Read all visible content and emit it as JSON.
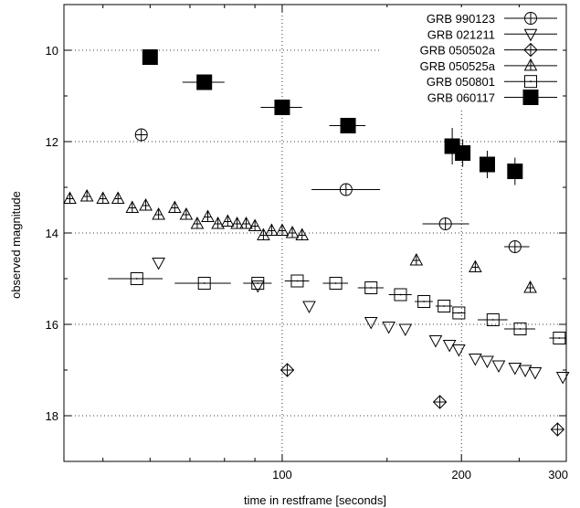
{
  "chart_data": {
    "type": "scatter",
    "title": "",
    "xlabel": "time in restframe [seconds]",
    "ylabel": "observed magnitude",
    "xscale": "log",
    "xlim": [
      43,
      300
    ],
    "ylim": [
      19,
      9
    ],
    "y_inverted": true,
    "grid": "dotted, at x ticks and y ticks",
    "legend_position": "top-right",
    "x_ticks": [
      100,
      200,
      300
    ],
    "x_tick_labels": [
      "100",
      "200",
      "300"
    ],
    "y_ticks": [
      10,
      12,
      14,
      16,
      18
    ],
    "y_tick_labels": [
      "10",
      "12",
      "14",
      "16",
      "18"
    ],
    "series": [
      {
        "name": "GRB 990123",
        "marker": "circle",
        "points": [
          {
            "x": 58,
            "y": 11.85
          },
          {
            "x": 128,
            "y": 13.05,
            "xerr": [
              112,
              146
            ]
          },
          {
            "x": 188,
            "y": 13.8,
            "xerr": [
              172,
              206
            ]
          },
          {
            "x": 246,
            "y": 14.3,
            "xerr": [
              236,
              260
            ]
          }
        ]
      },
      {
        "name": "GRB 021211",
        "marker": "triangle-down",
        "points": [
          {
            "x": 62,
            "y": 14.65
          },
          {
            "x": 91,
            "y": 15.15
          },
          {
            "x": 111,
            "y": 15.6
          },
          {
            "x": 141,
            "y": 15.95
          },
          {
            "x": 151,
            "y": 16.05
          },
          {
            "x": 161,
            "y": 16.1
          },
          {
            "x": 181,
            "y": 16.35
          },
          {
            "x": 191,
            "y": 16.45
          },
          {
            "x": 198,
            "y": 16.55
          },
          {
            "x": 211,
            "y": 16.75
          },
          {
            "x": 221,
            "y": 16.8
          },
          {
            "x": 231,
            "y": 16.9
          },
          {
            "x": 246,
            "y": 16.95
          },
          {
            "x": 256,
            "y": 17.0
          },
          {
            "x": 266,
            "y": 17.05
          },
          {
            "x": 296,
            "y": 17.15
          }
        ]
      },
      {
        "name": "GRB 050502a",
        "marker": "diamond",
        "points": [
          {
            "x": 102,
            "y": 17.0
          },
          {
            "x": 184,
            "y": 17.7
          },
          {
            "x": 290,
            "y": 18.3
          }
        ]
      },
      {
        "name": "GRB 050525a",
        "marker": "triangle-up",
        "points": [
          {
            "x": 44,
            "y": 13.25
          },
          {
            "x": 47,
            "y": 13.2
          },
          {
            "x": 50,
            "y": 13.25
          },
          {
            "x": 53,
            "y": 13.25
          },
          {
            "x": 56,
            "y": 13.45
          },
          {
            "x": 59,
            "y": 13.4
          },
          {
            "x": 62,
            "y": 13.6
          },
          {
            "x": 66,
            "y": 13.45
          },
          {
            "x": 69,
            "y": 13.6
          },
          {
            "x": 72,
            "y": 13.8
          },
          {
            "x": 75,
            "y": 13.65
          },
          {
            "x": 78,
            "y": 13.8
          },
          {
            "x": 81,
            "y": 13.75
          },
          {
            "x": 84,
            "y": 13.8
          },
          {
            "x": 87,
            "y": 13.8
          },
          {
            "x": 90,
            "y": 13.85
          },
          {
            "x": 93,
            "y": 14.05
          },
          {
            "x": 96,
            "y": 13.95
          },
          {
            "x": 100,
            "y": 13.95
          },
          {
            "x": 104,
            "y": 14.0
          },
          {
            "x": 108,
            "y": 14.05
          },
          {
            "x": 168,
            "y": 14.6
          },
          {
            "x": 211,
            "y": 14.75
          },
          {
            "x": 261,
            "y": 15.2
          }
        ]
      },
      {
        "name": "GRB 050801",
        "marker": "square-open",
        "points": [
          {
            "x": 57,
            "y": 15.0,
            "xerr": [
              51,
              63
            ]
          },
          {
            "x": 74,
            "y": 15.1,
            "xerr": [
              66,
              82
            ]
          },
          {
            "x": 91,
            "y": 15.1,
            "xerr": [
              86,
              96
            ]
          },
          {
            "x": 106,
            "y": 15.05,
            "xerr": [
              101,
              111
            ]
          },
          {
            "x": 123,
            "y": 15.1,
            "xerr": [
              117,
              129
            ]
          },
          {
            "x": 141,
            "y": 15.2,
            "xerr": [
              134,
              148
            ]
          },
          {
            "x": 158,
            "y": 15.35,
            "xerr": [
              151,
              165
            ]
          },
          {
            "x": 173,
            "y": 15.5,
            "xerr": [
              167,
              179
            ]
          },
          {
            "x": 187,
            "y": 15.6,
            "xerr": [
              181,
              193
            ]
          },
          {
            "x": 198,
            "y": 15.75,
            "xerr": [
              193,
              203
            ]
          },
          {
            "x": 226,
            "y": 15.9,
            "xerr": [
              213,
              239
            ]
          },
          {
            "x": 251,
            "y": 16.1,
            "xerr": [
              236,
              266
            ]
          },
          {
            "x": 292,
            "y": 16.3,
            "xerr": [
              281,
              300
            ]
          }
        ]
      },
      {
        "name": "GRB 060117",
        "marker": "square-filled",
        "points": [
          {
            "x": 60,
            "y": 10.15
          },
          {
            "x": 74,
            "y": 10.7,
            "xerr": [
              68,
              80
            ]
          },
          {
            "x": 100,
            "y": 11.25,
            "xerr": [
              92,
              108
            ]
          },
          {
            "x": 129,
            "y": 11.65,
            "xerr": [
              120,
              138
            ]
          },
          {
            "x": 193,
            "y": 12.1,
            "yerr": [
              11.7,
              12.5
            ]
          },
          {
            "x": 201,
            "y": 12.25,
            "yerr": [
              11.95,
              12.55
            ]
          },
          {
            "x": 221,
            "y": 12.5,
            "yerr": [
              12.2,
              12.8
            ]
          },
          {
            "x": 246,
            "y": 12.65,
            "yerr": [
              12.35,
              12.95
            ]
          }
        ]
      }
    ]
  }
}
